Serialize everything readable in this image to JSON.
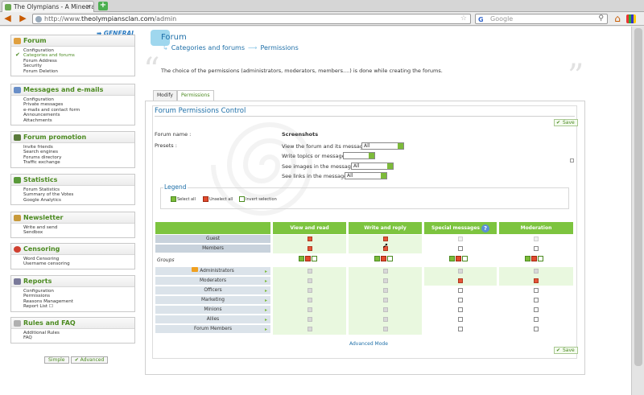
{
  "browser": {
    "tab_title": "The Olympians - A Minecraft a...",
    "url_prefix": "http://www.",
    "url_domain": "theolympiansclan.com",
    "url_path": "/admin",
    "search_placeholder": "Google"
  },
  "sidebar": {
    "general_label": "➡ GENERAL",
    "panels": [
      {
        "title": "Forum",
        "items": [
          "Configuration",
          "Categories and forums",
          "Forum Address",
          "Security",
          "Forum Deletion"
        ],
        "active": 1
      },
      {
        "title": "Messages and e-mails",
        "items": [
          "Configuration",
          "Private messages",
          "e-mails and contact form",
          "Announcements",
          "Attachments"
        ]
      },
      {
        "title": "Forum promotion",
        "items": [
          "Invite friends",
          "Search engines",
          "Forums directory",
          "Traffic exchange"
        ]
      },
      {
        "title": "Statistics",
        "items": [
          "Forum Statistics",
          "Summary of the Votes",
          "Google Analytics"
        ]
      },
      {
        "title": "Newsletter",
        "items": [
          "Write and send",
          "Sendbox"
        ]
      },
      {
        "title": "Censoring",
        "items": [
          "Word Censoring",
          "Username censoring"
        ]
      },
      {
        "title": "Reports",
        "items": [
          "Configuration",
          "Permissions",
          "Reasons Management",
          "Report List ☐"
        ]
      },
      {
        "title": "Rules and FAQ",
        "items": [
          "Additional Rules",
          "FAQ"
        ]
      }
    ],
    "mode_simple": "Simple",
    "mode_advanced": "✔ Advanced"
  },
  "main": {
    "section": "Forum",
    "breadcrumb": [
      "Categories and forums",
      "Permissions"
    ],
    "intro": "The choice of the permissions (administrators, moderators, members....) is done while creating the forums.",
    "tabs": [
      "Modify",
      "Permissions"
    ],
    "panel_title": "Forum Permissions Control",
    "save_label": "Save",
    "forum_name_label": "Forum name :",
    "presets_label": "Presets :",
    "forum_name_value": "Screenshots",
    "presets": [
      {
        "label": "View the forum and its messages :",
        "value": "All"
      },
      {
        "label": "Write topics or messages :",
        "value": ""
      },
      {
        "label": "See images in the messages :",
        "value": "All"
      },
      {
        "label": "See links in the messages :",
        "value": "All"
      }
    ],
    "legend_title": "Legend",
    "legend": [
      "Select all",
      "Unselect all",
      "Invert selection"
    ],
    "columns": [
      "View and read",
      "Write and reply",
      "Special messages",
      "Moderation"
    ],
    "groups_label": "Groups",
    "top_rows": [
      "Guest",
      "Members"
    ],
    "group_rows": [
      "Administrators",
      "Moderators",
      "Officers",
      "Marketing",
      "Minions",
      "Allies",
      "Forum Members"
    ],
    "advanced_mode": "Advanced Mode",
    "colors": {
      "accent_green": "#7dc43f",
      "link_blue": "#1e6fa8",
      "check_red": "#e6553a"
    }
  }
}
